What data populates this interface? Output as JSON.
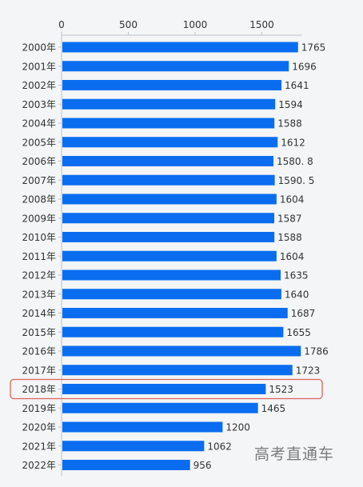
{
  "chart_data": {
    "type": "bar",
    "orientation": "horizontal",
    "categories": [
      "2000年",
      "2001年",
      "2002年",
      "2003年",
      "2004年",
      "2005年",
      "2006年",
      "2007年",
      "2008年",
      "2009年",
      "2010年",
      "2011年",
      "2012年",
      "2013年",
      "2014年",
      "2015年",
      "2016年",
      "2017年",
      "2018年",
      "2019年",
      "2020年",
      "2021年",
      "2022年"
    ],
    "values": [
      1765,
      1696,
      1641,
      1594,
      1588,
      1612,
      1580.8,
      1590.5,
      1604,
      1587,
      1588,
      1604,
      1635,
      1640,
      1687,
      1655,
      1786,
      1723,
      1523,
      1465,
      1200,
      1062,
      956
    ],
    "value_labels": [
      "1765",
      "1696",
      "1641",
      "1594",
      "1588",
      "1612",
      "1580. 8",
      "1590. 5",
      "1604",
      "1587",
      "1588",
      "1604",
      "1635",
      "1640",
      "1687",
      "1655",
      "1786",
      "1723",
      "1523",
      "1465",
      "1200",
      "1062",
      "956"
    ],
    "x_ticks": [
      "0",
      "500",
      "1000",
      "1500"
    ],
    "x_tick_values": [
      0,
      500,
      1000,
      1500
    ],
    "xlim": [
      0,
      1800
    ],
    "highlighted_category": "2018年",
    "grid": false,
    "title": "",
    "xlabel": "",
    "ylabel": "",
    "colors": {
      "bar": "#0a6df0",
      "highlight_border": "#e0625a",
      "axis": "#b9c3cc",
      "text": "#333333"
    }
  },
  "watermark": "高考直通车"
}
